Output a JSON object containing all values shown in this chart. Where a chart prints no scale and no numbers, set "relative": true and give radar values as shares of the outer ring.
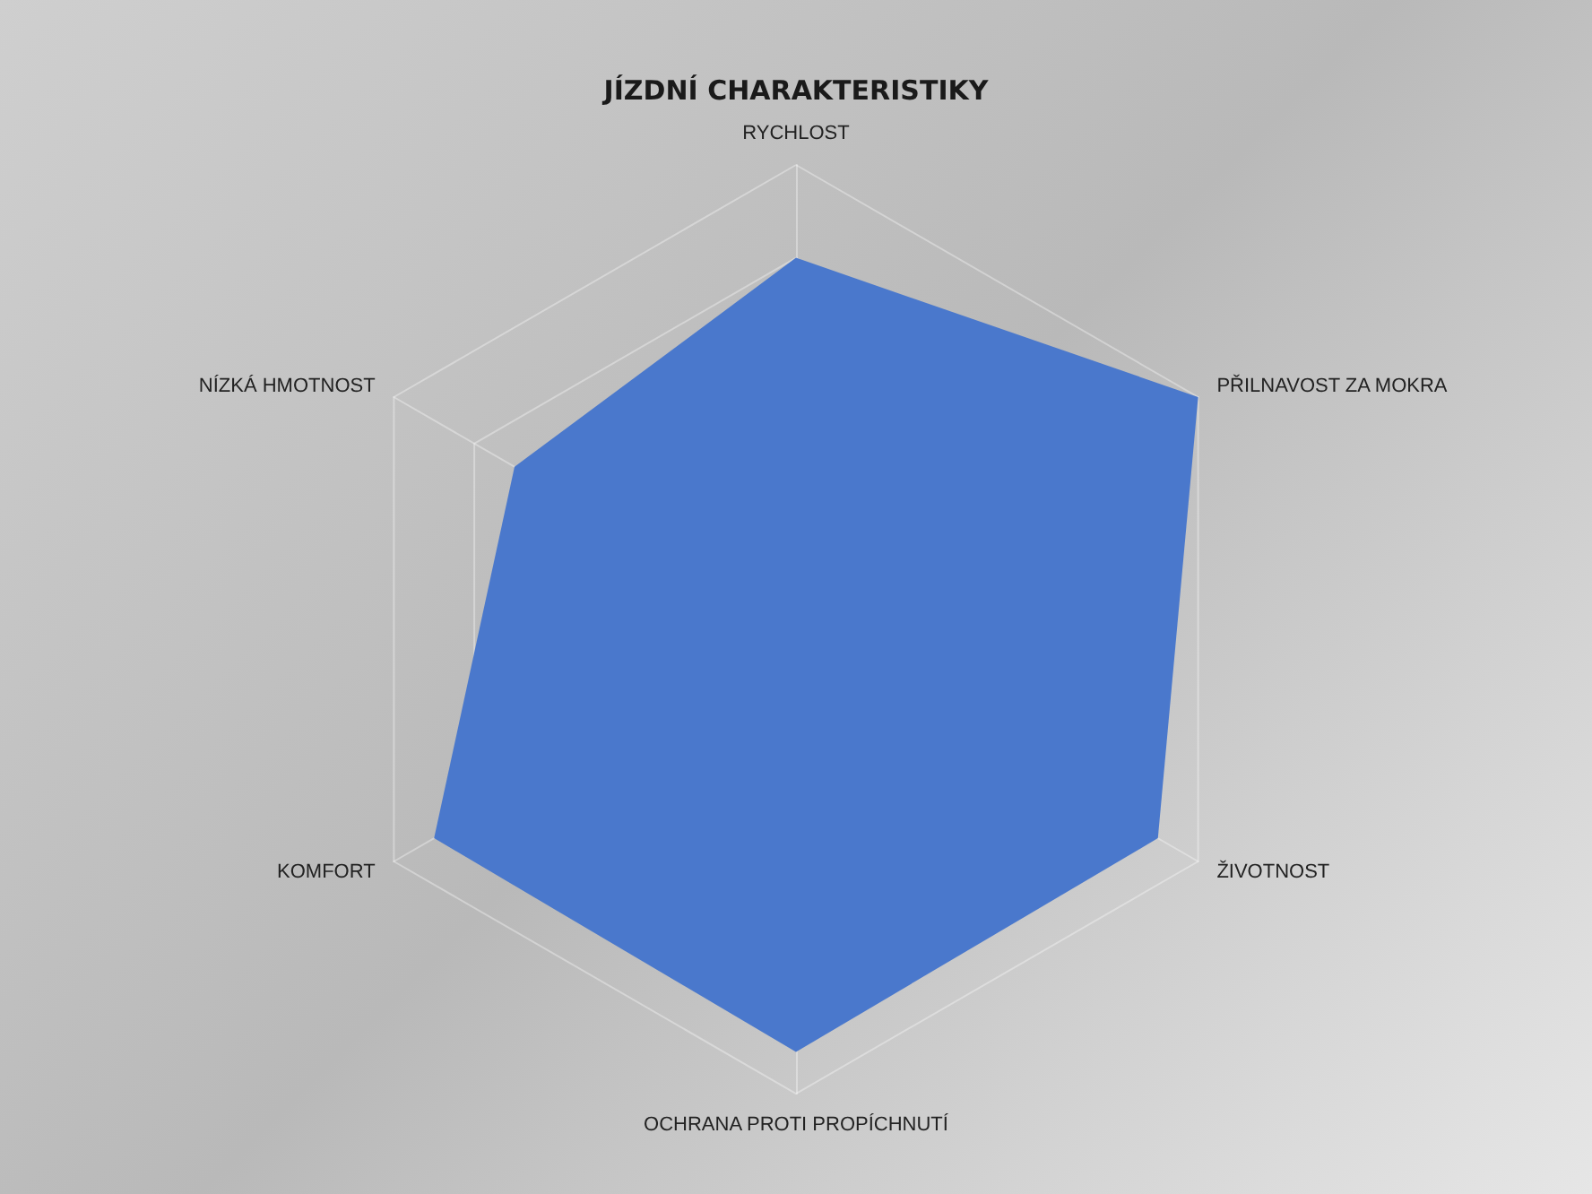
{
  "chart_data": {
    "type": "radar",
    "title": "JÍZDNÍ CHARAKTERISTIKY",
    "categories": [
      "RYCHLOST",
      "PŘILNAVOST ZA MOKRA",
      "ŽIVOTNOST",
      "OCHRANA PROTI PROPÍCHNUTÍ",
      "KOMFORT",
      "NÍZKÁ HMOTNOST"
    ],
    "series": [
      {
        "color": "#4a78cc",
        "values": [
          0.8,
          1.0,
          0.9,
          0.91,
          0.9,
          0.7
        ]
      }
    ],
    "relative": true,
    "grid": true,
    "marker": "none"
  }
}
